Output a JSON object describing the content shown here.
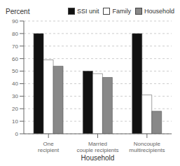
{
  "chart_data": {
    "type": "bar",
    "xlabel": "Household",
    "ylabel": "Percent",
    "categories": [
      "One\nrecipient",
      "Married\ncouple recipients",
      "Noncouple\nmultirecipients"
    ],
    "series": [
      {
        "name": "SSI unit",
        "color": "#111111",
        "values": [
          80,
          50,
          80
        ]
      },
      {
        "name": "Family",
        "color": "#ffffff",
        "values": [
          59,
          48,
          31
        ]
      },
      {
        "name": "Household",
        "color": "#888888",
        "values": [
          54,
          45,
          18
        ]
      }
    ],
    "ylim": [
      0,
      90
    ],
    "yticks": [
      0,
      10,
      20,
      30,
      40,
      50,
      60,
      70,
      80,
      90
    ],
    "grid": true,
    "legend": "upper right"
  }
}
